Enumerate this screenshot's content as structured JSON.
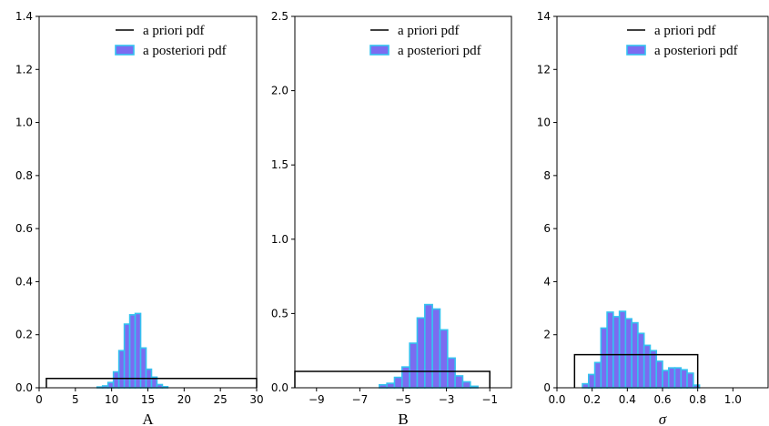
{
  "legend": {
    "prior_label": "a priori pdf",
    "posterior_label": "a posteriori pdf"
  },
  "colors": {
    "prior_line": "#000000",
    "bar_fill": "#7b6cf0",
    "bar_edge": "#35c2f0"
  },
  "chart_data": [
    {
      "type": "bar",
      "title": "",
      "xlabel": "A",
      "ylabel": "",
      "xlim": [
        0,
        30
      ],
      "ylim": [
        0,
        1.4
      ],
      "xticks": [
        "0",
        "5",
        "10",
        "15",
        "20",
        "25",
        "30"
      ],
      "yticks": [
        "0.0",
        "0.2",
        "0.4",
        "0.6",
        "0.8",
        "1.0",
        "1.2",
        "1.4"
      ],
      "legend_position": "top-right",
      "prior": {
        "x_start": 1,
        "x_end": 30,
        "density": 0.035
      },
      "posterior": {
        "bin_width": 0.75,
        "bin_starts": [
          8.0,
          8.75,
          9.5,
          10.25,
          11.0,
          11.75,
          12.5,
          13.25,
          14.0,
          14.75,
          15.5,
          16.25,
          17.0
        ],
        "densities": [
          0.003,
          0.007,
          0.02,
          0.06,
          0.14,
          0.24,
          0.275,
          0.28,
          0.15,
          0.07,
          0.04,
          0.012,
          0.004
        ]
      }
    },
    {
      "type": "bar",
      "title": "",
      "xlabel": "B",
      "ylabel": "",
      "xlim": [
        -10,
        0
      ],
      "ylim": [
        0,
        2.5
      ],
      "xticks": [
        "−9",
        "−7",
        "−5",
        "−3",
        "−1"
      ],
      "yticks": [
        "0.0",
        "0.5",
        "1.0",
        "1.5",
        "2.0",
        "2.5"
      ],
      "legend_position": "top-right",
      "prior": {
        "x_start": -10,
        "x_end": -1,
        "density": 0.11
      },
      "posterior": {
        "bin_width": 0.35,
        "bin_starts": [
          -6.1,
          -5.75,
          -5.4,
          -5.05,
          -4.7,
          -4.35,
          -4.0,
          -3.65,
          -3.3,
          -2.95,
          -2.6,
          -2.25,
          -1.9
        ],
        "densities": [
          0.02,
          0.03,
          0.07,
          0.14,
          0.3,
          0.47,
          0.56,
          0.53,
          0.39,
          0.2,
          0.08,
          0.04,
          0.01
        ]
      }
    },
    {
      "type": "bar",
      "title": "",
      "xlabel": "σ",
      "ylabel": "",
      "xlim": [
        0,
        1.2
      ],
      "ylim": [
        0,
        14
      ],
      "xticks": [
        "0.0",
        "0.2",
        "0.4",
        "0.6",
        "0.8",
        "1.0"
      ],
      "yticks": [
        "0",
        "2",
        "4",
        "6",
        "8",
        "10",
        "12",
        "14"
      ],
      "legend_position": "top-right",
      "prior": {
        "x_start": 0.1,
        "x_end": 0.8,
        "density": 1.25
      },
      "posterior": {
        "bin_width": 0.035,
        "bin_starts": [
          0.145,
          0.18,
          0.215,
          0.25,
          0.285,
          0.32,
          0.355,
          0.39,
          0.425,
          0.46,
          0.495,
          0.53,
          0.565,
          0.6,
          0.635,
          0.67,
          0.705,
          0.74,
          0.775
        ],
        "densities": [
          0.15,
          0.5,
          0.95,
          2.25,
          2.85,
          2.68,
          2.88,
          2.6,
          2.45,
          2.05,
          1.6,
          1.4,
          1.0,
          0.65,
          0.75,
          0.75,
          0.68,
          0.55,
          0.1
        ]
      }
    }
  ]
}
